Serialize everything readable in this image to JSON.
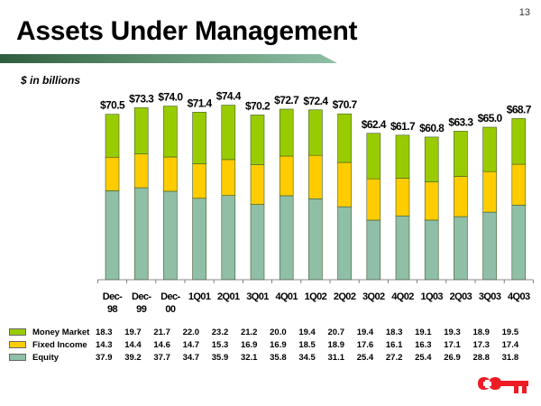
{
  "page_number": "13",
  "title": "Assets Under Management",
  "subtitle": "$ in billions",
  "colors": {
    "money_market": "#99cc00",
    "fixed_income": "#ffcc00",
    "equity": "#8fbfa6",
    "logo": "#ee1c25"
  },
  "chart_data": {
    "type": "bar",
    "stacked": true,
    "title": "Assets Under Management",
    "subtitle": "$ in billions",
    "xlabel": "",
    "ylabel": "",
    "ylim": [
      0,
      80
    ],
    "grid": false,
    "legend_position": "bottom-left (data table)",
    "categories": [
      "Dec-98",
      "Dec-99",
      "Dec-00",
      "1Q01",
      "2Q01",
      "3Q01",
      "4Q01",
      "1Q02",
      "2Q02",
      "3Q02",
      "4Q02",
      "1Q03",
      "2Q03",
      "3Q03",
      "4Q03"
    ],
    "category_lines": [
      [
        "Dec-",
        "98"
      ],
      [
        "Dec-",
        "99"
      ],
      [
        "Dec-",
        "00"
      ],
      [
        "1Q01"
      ],
      [
        "2Q01"
      ],
      [
        "3Q01"
      ],
      [
        "4Q01"
      ],
      [
        "1Q02"
      ],
      [
        "2Q02"
      ],
      [
        "3Q02"
      ],
      [
        "4Q02"
      ],
      [
        "1Q03"
      ],
      [
        "2Q03"
      ],
      [
        "3Q03"
      ],
      [
        "4Q03"
      ]
    ],
    "totals": [
      "$70.5",
      "$73.3",
      "$74.0",
      "$71.4",
      "$74.4",
      "$70.2",
      "$72.7",
      "$72.4",
      "$70.7",
      "$62.4",
      "$61.7",
      "$60.8",
      "$63.3",
      "$65.0",
      "$68.7"
    ],
    "series": [
      {
        "name": "Equity",
        "key": "equity",
        "values": [
          37.9,
          39.2,
          37.7,
          34.7,
          35.9,
          32.1,
          35.8,
          34.5,
          31.1,
          25.4,
          27.2,
          25.4,
          26.9,
          28.8,
          31.8
        ]
      },
      {
        "name": "Fixed Income",
        "key": "fixed_income",
        "values": [
          14.3,
          14.4,
          14.6,
          14.7,
          15.3,
          16.9,
          16.9,
          18.5,
          18.9,
          17.6,
          16.1,
          16.3,
          17.1,
          17.3,
          17.4
        ]
      },
      {
        "name": "Money Market",
        "key": "money_market",
        "values": [
          18.3,
          19.7,
          21.7,
          22.0,
          23.2,
          21.2,
          20.0,
          19.4,
          20.7,
          19.4,
          18.3,
          19.1,
          19.3,
          18.9,
          19.5
        ]
      }
    ]
  },
  "table": {
    "rows": [
      {
        "label": "Money Market",
        "key": "money_market",
        "values": [
          "18.3",
          "19.7",
          "21.7",
          "22.0",
          "23.2",
          "21.2",
          "20.0",
          "19.4",
          "20.7",
          "19.4",
          "18.3",
          "19.1",
          "19.3",
          "18.9",
          "19.5"
        ]
      },
      {
        "label": "Fixed Income",
        "key": "fixed_income",
        "values": [
          "14.3",
          "14.4",
          "14.6",
          "14.7",
          "15.3",
          "16.9",
          "16.9",
          "18.5",
          "18.9",
          "17.6",
          "16.1",
          "16.3",
          "17.1",
          "17.3",
          "17.4"
        ]
      },
      {
        "label": "Equity",
        "key": "equity",
        "values": [
          "37.9",
          "39.2",
          "37.7",
          "34.7",
          "35.9",
          "32.1",
          "35.8",
          "34.5",
          "31.1",
          "25.4",
          "27.2",
          "25.4",
          "26.9",
          "28.8",
          "31.8"
        ]
      }
    ]
  },
  "logo": {
    "icon": "key-icon"
  }
}
